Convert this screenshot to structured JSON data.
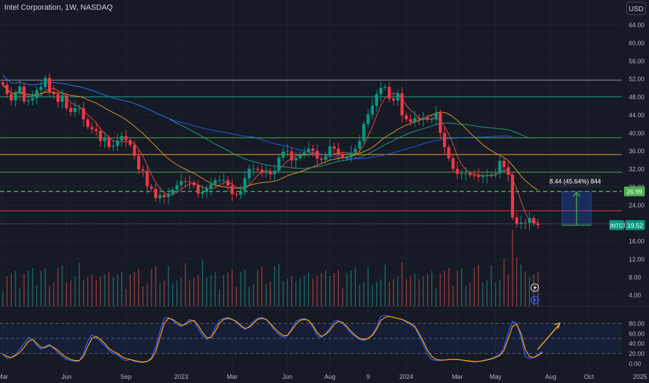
{
  "header": {
    "title": "Intel Corporation, 1W, NASDAQ",
    "currency": "USD"
  },
  "colors": {
    "background": "#161a25",
    "up": "#26a69a",
    "down": "#ef5350",
    "upCandle": "#089981",
    "downCandle": "#f23645",
    "ma_fast": "#ef5350",
    "ma_mid": "#f5a623",
    "ma_slow": "#22ab94",
    "ma_long": "#2962ff",
    "stoch_k": "#2962ff",
    "stoch_d": "#ff9800",
    "hline_cyan": "#22ab94",
    "hline_orange": "#f5a623",
    "hline_green": "#4caf50",
    "hline_red": "#f23645",
    "measure": "#2962ff",
    "arrow": "#f5a623"
  },
  "icons": [
    "lightning-icon",
    "plus-circle-icon"
  ],
  "chart_data": [
    {
      "type": "candlestick",
      "title": "Intel Corporation, 1W, NASDAQ",
      "ylim": [
        0,
        68
      ],
      "y_ticks": [
        "4.00",
        "8.00",
        "12.00",
        "16.00",
        "20.00",
        "24.00",
        "28.00",
        "32.00",
        "36.00",
        "40.00",
        "44.00",
        "48.00",
        "52.00",
        "56.00",
        "60.00",
        "64.00"
      ],
      "y_tick_values": [
        4,
        8,
        12,
        16,
        20,
        24,
        28,
        32,
        36,
        40,
        44,
        48,
        52,
        56,
        60,
        64
      ],
      "x_ticks": [
        "Mar",
        "Jun",
        "Sep",
        "2023",
        "Mar",
        "Jun",
        "Aug",
        "9",
        "2024",
        "Mar",
        "May",
        "Aug",
        "Oct",
        "2025"
      ],
      "x_tick_index": [
        0,
        15,
        29,
        42,
        54,
        67,
        77,
        86,
        95,
        107,
        116,
        129,
        138,
        150
      ],
      "closes": [
        50.7,
        48.6,
        47.2,
        48.7,
        50.3,
        47.0,
        47.2,
        47.7,
        49.5,
        50.2,
        52.2,
        49.0,
        48.6,
        46.9,
        48.3,
        45.5,
        44.6,
        45.5,
        45.5,
        43.0,
        41.3,
        40.8,
        40.4,
        38.2,
        38.9,
        36.9,
        37.1,
        38.3,
        39.3,
        38.4,
        37.3,
        34.9,
        31.9,
        31.6,
        28.1,
        27.6,
        25.5,
        26.2,
        25.7,
        26.5,
        27.4,
        28.4,
        29.3,
        29.2,
        29.0,
        28.4,
        26.5,
        26.9,
        27.6,
        28.6,
        29.5,
        29.5,
        29.5,
        28.3,
        26.4,
        26.3,
        27.2,
        29.9,
        32.0,
        32.0,
        31.8,
        31.1,
        31.3,
        30.8,
        31.6,
        34.5,
        35.8,
        35.9,
        33.9,
        34.4,
        35.3,
        35.7,
        36.5,
        36.0,
        34.3,
        34.0,
        34.8,
        37.0,
        36.5,
        35.3,
        34.6,
        34.6,
        35.6,
        36.5,
        38.2,
        42.0,
        44.1,
        46.0,
        48.6,
        50.0,
        50.2,
        47.6,
        47.2,
        48.8,
        43.9,
        43.0,
        42.4,
        43.3,
        43.0,
        43.4,
        42.9,
        43.0,
        44.4,
        40.0,
        36.8,
        34.4,
        32.0,
        30.9,
        31.0,
        31.0,
        30.6,
        30.5,
        30.2,
        30.4,
        30.6,
        30.8,
        31.0,
        33.8,
        32.4,
        30.7,
        21.2,
        19.8,
        20.1,
        20.0,
        21.1,
        19.9,
        19.5
      ],
      "moving_averages": [
        "MA fast",
        "MA mid",
        "MA slow",
        "MA long"
      ],
      "horizontal_levels": [
        51.7,
        48.0,
        38.9,
        35.2,
        31.3,
        27.0,
        22.7,
        19.8
      ],
      "last_price": {
        "ticker": "INTC",
        "value": "19.52"
      },
      "target_price": "26.99",
      "measure_label": "8.44 (45.64%) 844",
      "volume_note": "weekly volume bars"
    },
    {
      "type": "line",
      "title": "Stochastic",
      "ylim": [
        0,
        100
      ],
      "y_ticks": [
        "0.00",
        "20.00",
        "40.00",
        "60.00",
        "80.00"
      ],
      "y_tick_values": [
        0,
        20,
        40,
        60,
        80
      ],
      "bands": [
        20,
        50,
        80
      ],
      "series": [
        {
          "key": "k",
          "values": [
            20,
            10,
            12,
            18,
            28,
            40,
            52,
            48,
            36,
            28,
            34,
            38,
            30,
            22,
            14,
            8,
            6,
            4,
            5,
            20,
            45,
            57,
            52,
            44,
            36,
            26,
            20,
            18,
            10,
            6,
            8,
            4,
            3,
            2,
            4,
            12,
            34,
            64,
            90,
            92,
            86,
            78,
            74,
            80,
            88,
            84,
            70,
            56,
            48,
            52,
            72,
            86,
            90,
            92,
            88,
            82,
            74,
            68,
            74,
            84,
            90,
            92,
            88,
            78,
            66,
            58,
            52,
            56,
            70,
            84,
            88,
            90,
            86,
            72,
            56,
            52,
            60,
            70,
            84,
            86,
            80,
            70,
            60,
            54,
            48,
            46,
            50,
            58,
            72,
            94,
            96,
            94,
            92,
            90,
            88,
            82,
            78,
            72,
            56,
            38,
            18,
            8,
            6,
            6,
            7,
            8,
            8,
            8,
            7,
            5,
            4,
            3,
            4,
            6,
            8,
            10,
            14,
            18,
            32,
            62,
            84,
            80,
            52,
            14,
            10,
            12,
            18,
            24
          ]
        },
        {
          "key": "d",
          "values": [
            18,
            14,
            12,
            16,
            22,
            32,
            44,
            48,
            40,
            32,
            32,
            36,
            32,
            26,
            18,
            12,
            8,
            6,
            6,
            14,
            34,
            50,
            54,
            48,
            40,
            30,
            24,
            20,
            14,
            10,
            8,
            6,
            4,
            3,
            4,
            9,
            24,
            52,
            80,
            90,
            88,
            82,
            76,
            78,
            84,
            86,
            76,
            62,
            52,
            52,
            64,
            80,
            88,
            90,
            88,
            84,
            76,
            70,
            72,
            80,
            88,
            90,
            88,
            80,
            70,
            62,
            56,
            56,
            66,
            78,
            86,
            88,
            86,
            76,
            62,
            54,
            58,
            66,
            78,
            84,
            82,
            74,
            64,
            56,
            50,
            48,
            50,
            56,
            68,
            86,
            92,
            94,
            92,
            90,
            88,
            84,
            80,
            74,
            60,
            44,
            26,
            14,
            8,
            7,
            7,
            8,
            8,
            8,
            7,
            6,
            5,
            4,
            4,
            5,
            7,
            9,
            12,
            16,
            26,
            50,
            74,
            78,
            60,
            28,
            14,
            12,
            16,
            22
          ]
        }
      ],
      "projection_arrow": "up"
    }
  ]
}
